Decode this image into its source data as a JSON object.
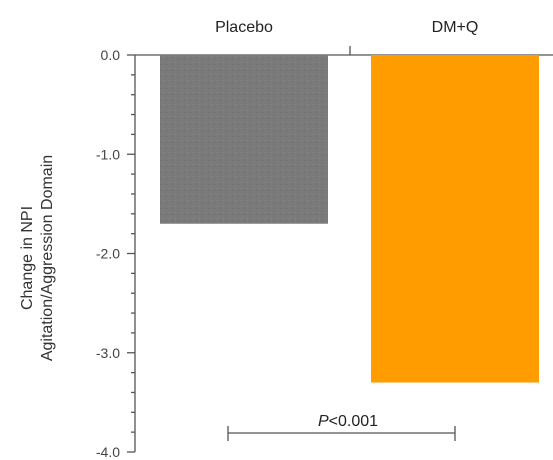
{
  "chart_data": {
    "type": "bar",
    "categories": [
      "Placebo",
      "DM+Q"
    ],
    "values": [
      -1.7,
      -3.3
    ],
    "colors": [
      "#7a7a7a",
      "#ff9c00"
    ],
    "ylabel_line1": "Change in NPI",
    "ylabel_line2": "Agitation/Aggression Domain",
    "ylim": [
      -4.0,
      0.0
    ],
    "yticks": [
      "0.0",
      "-1.0",
      "-2.0",
      "-3.0",
      "-4.0"
    ],
    "ytick_values": [
      0.0,
      -1.0,
      -2.0,
      -3.0,
      -4.0
    ],
    "category_axis_position": "top",
    "grid": false,
    "annotation": {
      "p_italic": "P",
      "p_rest": "<0.001"
    }
  }
}
